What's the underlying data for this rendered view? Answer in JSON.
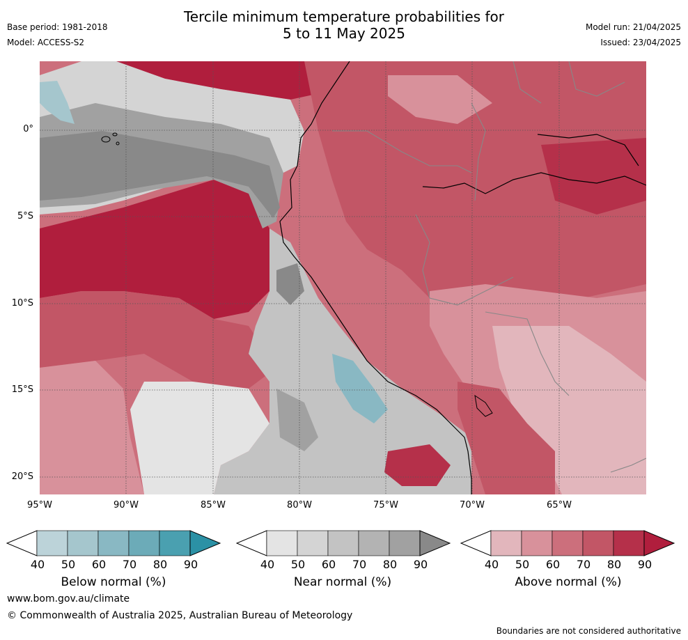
{
  "header": {
    "title_line1": "Tercile minimum temperature probabilities for",
    "title_line2": "5 to 11 May 2025",
    "base_period": "Base period: 1981-2018",
    "model": "Model: ACCESS-S2",
    "model_run": "Model run: 21/04/2025",
    "issued": "Issued: 23/04/2025"
  },
  "map": {
    "lat_labels": [
      "0°",
      "5°S",
      "10°S",
      "15°S",
      "20°S"
    ],
    "lon_labels": [
      "95°W",
      "90°W",
      "85°W",
      "80°W",
      "75°W",
      "70°W",
      "65°W"
    ]
  },
  "colorbars": [
    {
      "label": "Below normal (%)",
      "ticks": [
        "40",
        "50",
        "60",
        "70",
        "80",
        "90"
      ],
      "colors": [
        "#bcd3d9",
        "#a5c6cd",
        "#89b8c3",
        "#6cabb8",
        "#4aa0b0",
        "#2b91a5"
      ]
    },
    {
      "label": "Near normal (%)",
      "ticks": [
        "40",
        "50",
        "60",
        "70",
        "80",
        "90"
      ],
      "colors": [
        "#e4e4e4",
        "#d4d4d4",
        "#c3c3c3",
        "#b3b3b3",
        "#a1a1a1",
        "#898989"
      ]
    },
    {
      "label": "Above normal (%)",
      "ticks": [
        "40",
        "50",
        "60",
        "70",
        "80",
        "90"
      ],
      "colors": [
        "#e2b6bc",
        "#d8919b",
        "#cc6f7c",
        "#c25666",
        "#b5304a",
        "#b01e3d"
      ]
    }
  ],
  "footer": {
    "website": "www.bom.gov.au/climate",
    "copyright": "© Commonwealth of Australia 2025, Australian Bureau of Meteorology",
    "disclaimer": "Boundaries are not considered authoritative"
  }
}
